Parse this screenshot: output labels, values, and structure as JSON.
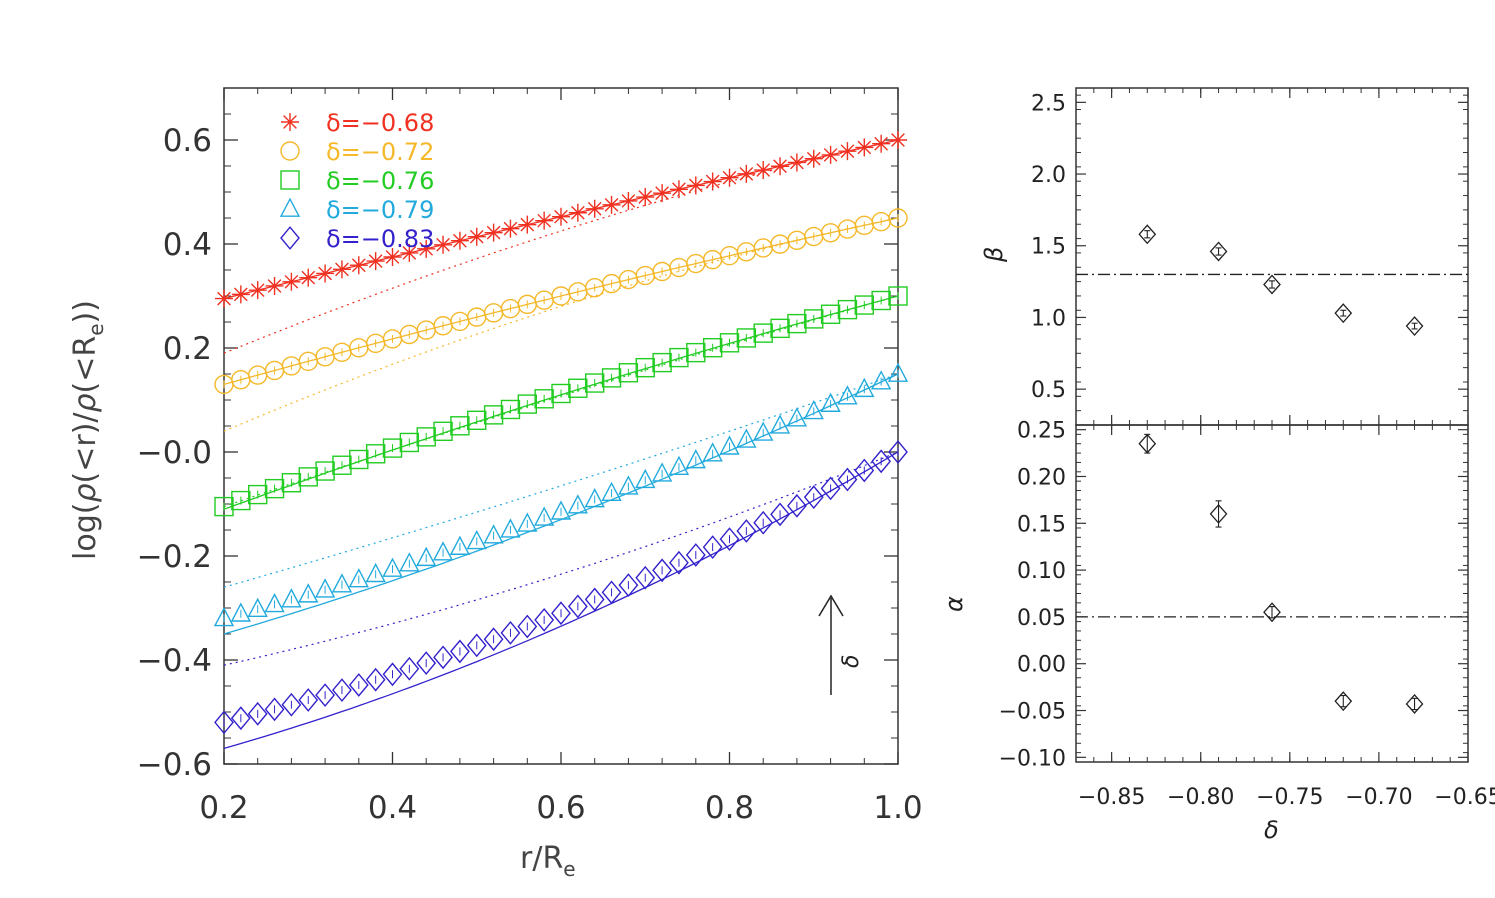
{
  "left_panel": {
    "xlabel": "r/R",
    "xlabel_sub": "e",
    "ylabel_parts": [
      "log(",
      "ρ",
      "(<r)/",
      "ρ",
      "(<R",
      "e",
      "))"
    ],
    "xlim": [
      0.2,
      1.0
    ],
    "ylim": [
      -0.6,
      0.7
    ],
    "xticks": [
      "0.2",
      "0.4",
      "0.6",
      "0.8",
      "1.0"
    ],
    "yticks": [
      "−0.6",
      "−0.4",
      "−0.2",
      "−0.0",
      "0.2",
      "0.4",
      "0.6"
    ],
    "arrow_label": "δ"
  },
  "top_right": {
    "ylabel": "β",
    "yticks": [
      "0.5",
      "1.0",
      "1.5",
      "2.0",
      "2.5"
    ],
    "ylim": [
      0.25,
      2.6
    ],
    "hline": 1.3
  },
  "bottom_right": {
    "ylabel": "α",
    "xlabel": "δ",
    "yticks": [
      "−0.10",
      "−0.05",
      "0.00",
      "0.05",
      "0.10",
      "0.15",
      "0.20",
      "0.25"
    ],
    "xticks": [
      "−0.85",
      "−0.80",
      "−0.75",
      "−0.70",
      "−0.65"
    ],
    "xlim": [
      -0.87,
      -0.65
    ],
    "ylim": [
      -0.105,
      0.255
    ],
    "hline": 0.05
  },
  "legend": [
    {
      "symbol": "asterisk",
      "label": "δ=−0.68",
      "color": "#f03020"
    },
    {
      "symbol": "circle",
      "label": "δ=−0.72",
      "color": "#f5b82a"
    },
    {
      "symbol": "square",
      "label": "δ=−0.76",
      "color": "#22cc22"
    },
    {
      "symbol": "triangle",
      "label": "δ=−0.79",
      "color": "#22aadd"
    },
    {
      "symbol": "diamond",
      "label": "δ=−0.83",
      "color": "#3322cc"
    }
  ],
  "chart_data": [
    {
      "type": "line",
      "xlabel": "r/Re",
      "ylabel": "log(ρ(<r)/ρ(<Re))",
      "xlim": [
        0.2,
        1.0
      ],
      "ylim": [
        -0.6,
        0.7
      ],
      "series": [
        {
          "name": "δ=−0.68",
          "symbol": "asterisk",
          "color": "#f03020",
          "points_start": 0.295,
          "points_end": 0.6,
          "points_curv": 0.01,
          "fit_start": 0.295,
          "fit_end": 0.6,
          "dotted_start": 0.19,
          "dotted_end": 0.6,
          "dotted_curv": 0.06
        },
        {
          "name": "δ=−0.72",
          "symbol": "circle",
          "color": "#f5b82a",
          "points_start": 0.13,
          "points_end": 0.45,
          "points_curv": 0.02,
          "fit_start": 0.13,
          "fit_end": 0.45,
          "dotted_start": 0.04,
          "dotted_end": 0.45,
          "dotted_curv": 0.07
        },
        {
          "name": "δ=−0.76",
          "symbol": "square",
          "color": "#22cc22",
          "points_start": -0.105,
          "points_end": 0.3,
          "points_curv": 0.03,
          "fit_start": -0.11,
          "fit_end": 0.3,
          "dotted_start": -0.105,
          "dotted_end": 0.3,
          "dotted_curv": 0.02
        },
        {
          "name": "δ=−0.79",
          "symbol": "triangle",
          "color": "#22aadd",
          "points_start": -0.32,
          "points_end": 0.15,
          "points_curv": -0.06,
          "fit_start": -0.35,
          "fit_end": 0.15,
          "dotted_start": -0.26,
          "dotted_end": 0.15,
          "dotted_curv": -0.02
        },
        {
          "name": "δ=−0.83",
          "symbol": "diamond",
          "color": "#3322cc",
          "points_start": -0.52,
          "points_end": 0.0,
          "points_curv": -0.1,
          "fit_start": -0.57,
          "fit_end": 0.0,
          "dotted_start": -0.41,
          "dotted_end": 0.0,
          "dotted_curv": -0.06
        }
      ]
    },
    {
      "type": "scatter",
      "ylabel": "β",
      "ylim": [
        0.25,
        2.6
      ],
      "hline": 1.3,
      "x": [
        -0.83,
        -0.79,
        -0.76,
        -0.72,
        -0.68
      ],
      "y": [
        1.58,
        1.46,
        1.23,
        1.03,
        0.94
      ],
      "yerr": [
        0.025,
        0.025,
        0.025,
        0.02,
        0.02
      ]
    },
    {
      "type": "scatter",
      "ylabel": "α",
      "xlabel": "δ",
      "xlim": [
        -0.87,
        -0.65
      ],
      "ylim": [
        -0.105,
        0.255
      ],
      "hline": 0.05,
      "x": [
        -0.83,
        -0.79,
        -0.76,
        -0.72,
        -0.68
      ],
      "y": [
        0.235,
        0.16,
        0.055,
        -0.04,
        -0.043
      ],
      "yerr": [
        0.01,
        0.014,
        0.006,
        0.006,
        0.006
      ]
    }
  ]
}
